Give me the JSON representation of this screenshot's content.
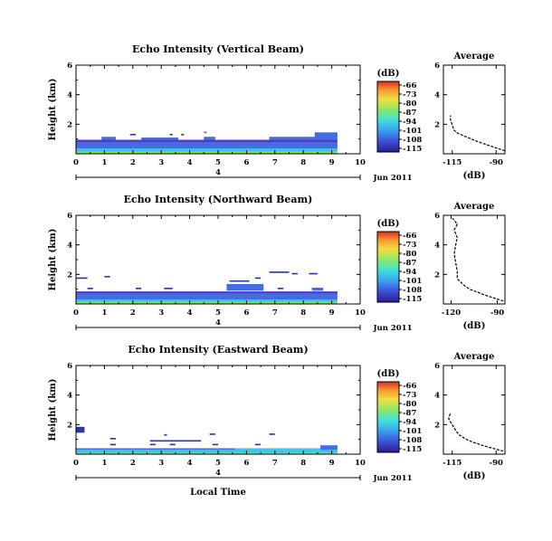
{
  "chart_data": {
    "type": "heatmap",
    "x_label": "Local Time",
    "date_label": "Jun 2011",
    "day_tick_label": "4",
    "panels": [
      {
        "title": "Echo Intensity (Vertical Beam)",
        "ylabel": "Height (km)",
        "xlim": [
          0,
          10
        ],
        "ylim": [
          0,
          6
        ],
        "x_ticks": [
          "0",
          "1",
          "2",
          "3",
          "4",
          "5",
          "6",
          "7",
          "8",
          "9",
          "10"
        ],
        "y_ticks": [
          "2",
          "4",
          "6"
        ],
        "colorbar": {
          "unit": "(dB)",
          "ticks": [
            "-66",
            "-73",
            "-80",
            "-87",
            "-94",
            "-101",
            "-108",
            "-115"
          ]
        },
        "avg": {
          "title": "Average",
          "xlabel": "(dB)",
          "xlim": [
            -120,
            -85
          ],
          "x_ticks": [
            "-115",
            "-90"
          ],
          "ylim": [
            0,
            6
          ],
          "y_ticks": [
            "2",
            "4",
            "6"
          ],
          "profile": [
            [
              -85,
              0.2
            ],
            [
              -90,
              0.4
            ],
            [
              -95,
              0.6
            ],
            [
              -100,
              0.8
            ],
            [
              -104,
              1.0
            ],
            [
              -108,
              1.2
            ],
            [
              -112,
              1.4
            ],
            [
              -114,
              1.6
            ],
            [
              -116,
              2.3
            ],
            [
              -116,
              2.6
            ]
          ]
        }
      },
      {
        "title": "Echo Intensity (Northward Beam)",
        "ylabel": "Height (km)",
        "xlim": [
          0,
          10
        ],
        "ylim": [
          0,
          6
        ],
        "x_ticks": [
          "0",
          "1",
          "2",
          "3",
          "4",
          "5",
          "6",
          "7",
          "8",
          "9",
          "10"
        ],
        "y_ticks": [
          "2",
          "4",
          "6"
        ],
        "colorbar": {
          "unit": "(dB)",
          "ticks": [
            "-66",
            "-73",
            "-80",
            "-87",
            "-94",
            "-101",
            "-108",
            "-115"
          ]
        },
        "avg": {
          "title": "Average",
          "xlabel": "(dB)",
          "xlim": [
            -125,
            -85
          ],
          "x_ticks": [
            "-120",
            "-90"
          ],
          "ylim": [
            0,
            6
          ],
          "y_ticks": [
            "2",
            "4",
            "6"
          ],
          "profile": [
            [
              -86,
              0.2
            ],
            [
              -92,
              0.4
            ],
            [
              -98,
              0.6
            ],
            [
              -103,
              0.8
            ],
            [
              -108,
              1.0
            ],
            [
              -112,
              1.3
            ],
            [
              -116,
              1.7
            ],
            [
              -116,
              2.2
            ],
            [
              -117,
              2.8
            ],
            [
              -118,
              3.4
            ],
            [
              -117,
              4.0
            ],
            [
              -116,
              4.5
            ],
            [
              -118,
              5.0
            ],
            [
              -116,
              5.4
            ],
            [
              -119,
              5.8
            ]
          ]
        }
      },
      {
        "title": "Echo Intensity (Eastward Beam)",
        "ylabel": "Height (km)",
        "xlim": [
          0,
          10
        ],
        "ylim": [
          0,
          6
        ],
        "x_ticks": [
          "0",
          "1",
          "2",
          "3",
          "4",
          "5",
          "6",
          "7",
          "8",
          "9",
          "10"
        ],
        "y_ticks": [
          "2",
          "4",
          "6"
        ],
        "colorbar": {
          "unit": "(dB)",
          "ticks": [
            "-66",
            "-73",
            "-80",
            "-87",
            "-94",
            "-101",
            "-108",
            "-115"
          ]
        },
        "avg": {
          "title": "Average",
          "xlabel": "(dB)",
          "xlim": [
            -120,
            -85
          ],
          "x_ticks": [
            "-115",
            "-90"
          ],
          "ylim": [
            0,
            6
          ],
          "y_ticks": [
            "2",
            "4",
            "6"
          ],
          "profile": [
            [
              -86,
              0.2
            ],
            [
              -92,
              0.4
            ],
            [
              -98,
              0.6
            ],
            [
              -103,
              0.8
            ],
            [
              -107,
              1.0
            ],
            [
              -111,
              1.3
            ],
            [
              -113,
              1.6
            ],
            [
              -115,
              2.0
            ],
            [
              -117,
              2.4
            ],
            [
              -116,
              2.8
            ]
          ]
        }
      }
    ],
    "echo_blocks": [
      [
        [
          0,
          9.2,
          0,
          0.15,
          "#8be04e"
        ],
        [
          0,
          9.2,
          0.15,
          0.35,
          "#39c3f0"
        ],
        [
          0,
          9.2,
          0.35,
          0.75,
          "#3f6fe0"
        ],
        [
          0,
          9.2,
          0.75,
          0.95,
          "#4b3fc8"
        ],
        [
          0.9,
          1.4,
          0.95,
          1.15,
          "#3f6fe0"
        ],
        [
          2.3,
          3.6,
          0.95,
          1.1,
          "#3f6fe0"
        ],
        [
          4.5,
          4.9,
          0.95,
          1.15,
          "#3f6fe0"
        ],
        [
          6.8,
          8.6,
          0.95,
          1.15,
          "#3f6fe0"
        ],
        [
          8.4,
          9.2,
          0.95,
          1.45,
          "#3f6fe0"
        ],
        [
          1.9,
          2.1,
          1.25,
          1.35,
          "#2b3a9a"
        ],
        [
          3.3,
          3.4,
          1.25,
          1.35,
          "#2b3a9a"
        ],
        [
          3.7,
          3.8,
          1.25,
          1.35,
          "#2b3a9a"
        ],
        [
          4.5,
          4.6,
          1.4,
          1.5,
          "#3f6fe0"
        ]
      ],
      [
        [
          0,
          9.2,
          0,
          0.15,
          "#8be04e"
        ],
        [
          0,
          9.2,
          0.15,
          0.3,
          "#39c3f0"
        ],
        [
          0,
          9.2,
          0.3,
          0.7,
          "#3f6fe0"
        ],
        [
          0,
          9.2,
          0.7,
          0.85,
          "#4b3fc8"
        ],
        [
          0.4,
          0.6,
          1.0,
          1.1,
          "#2b3a9a"
        ],
        [
          2.1,
          2.3,
          1.0,
          1.1,
          "#2b3a9a"
        ],
        [
          3.1,
          3.4,
          1.0,
          1.1,
          "#2b3a9a"
        ],
        [
          5.3,
          6.6,
          0.9,
          1.35,
          "#3f6fe0"
        ],
        [
          7.1,
          7.3,
          1.0,
          1.1,
          "#2b3a9a"
        ],
        [
          8.3,
          8.7,
          0.9,
          1.1,
          "#3f6fe0"
        ],
        [
          0,
          0.4,
          1.7,
          1.8,
          "#2b3a9a"
        ],
        [
          1.0,
          1.2,
          1.8,
          1.9,
          "#2b3a9a"
        ],
        [
          5.4,
          6.1,
          1.5,
          1.6,
          "#2b3a9a"
        ],
        [
          6.3,
          6.5,
          1.7,
          1.8,
          "#2b3a9a"
        ],
        [
          6.8,
          7.5,
          2.1,
          2.2,
          "#2b3a9a"
        ],
        [
          7.6,
          7.8,
          2.0,
          2.1,
          "#2b3a9a"
        ],
        [
          8.2,
          8.5,
          2.0,
          2.1,
          "#2b3a9a"
        ]
      ],
      [
        [
          0,
          9.2,
          0,
          0.1,
          "#8be04e"
        ],
        [
          0,
          9.2,
          0.1,
          0.3,
          "#39c3f0"
        ],
        [
          0,
          5.6,
          0.3,
          0.4,
          "#3f6fe0"
        ],
        [
          5.6,
          9.2,
          0.3,
          0.4,
          "#39c3f0"
        ],
        [
          8.6,
          9.2,
          0.3,
          0.6,
          "#3f6fe0"
        ],
        [
          1.2,
          1.4,
          0.6,
          0.7,
          "#2b3a9a"
        ],
        [
          2.6,
          2.8,
          0.6,
          0.7,
          "#2b3a9a"
        ],
        [
          3.3,
          3.5,
          0.6,
          0.7,
          "#2b3a9a"
        ],
        [
          4.8,
          5.0,
          0.6,
          0.7,
          "#2b3a9a"
        ],
        [
          6.3,
          6.5,
          0.6,
          0.7,
          "#2b3a9a"
        ],
        [
          2.6,
          4.4,
          0.85,
          0.95,
          "#2b3a9a"
        ],
        [
          1.2,
          1.4,
          1.0,
          1.1,
          "#2b3a9a"
        ],
        [
          3.1,
          3.2,
          1.25,
          1.35,
          "#2b3a9a"
        ],
        [
          4.7,
          4.9,
          1.3,
          1.4,
          "#2b3a9a"
        ],
        [
          6.8,
          7.0,
          1.3,
          1.4,
          "#2b3a9a"
        ],
        [
          0,
          0.3,
          1.45,
          1.85,
          "#2b3a9a"
        ]
      ]
    ]
  }
}
